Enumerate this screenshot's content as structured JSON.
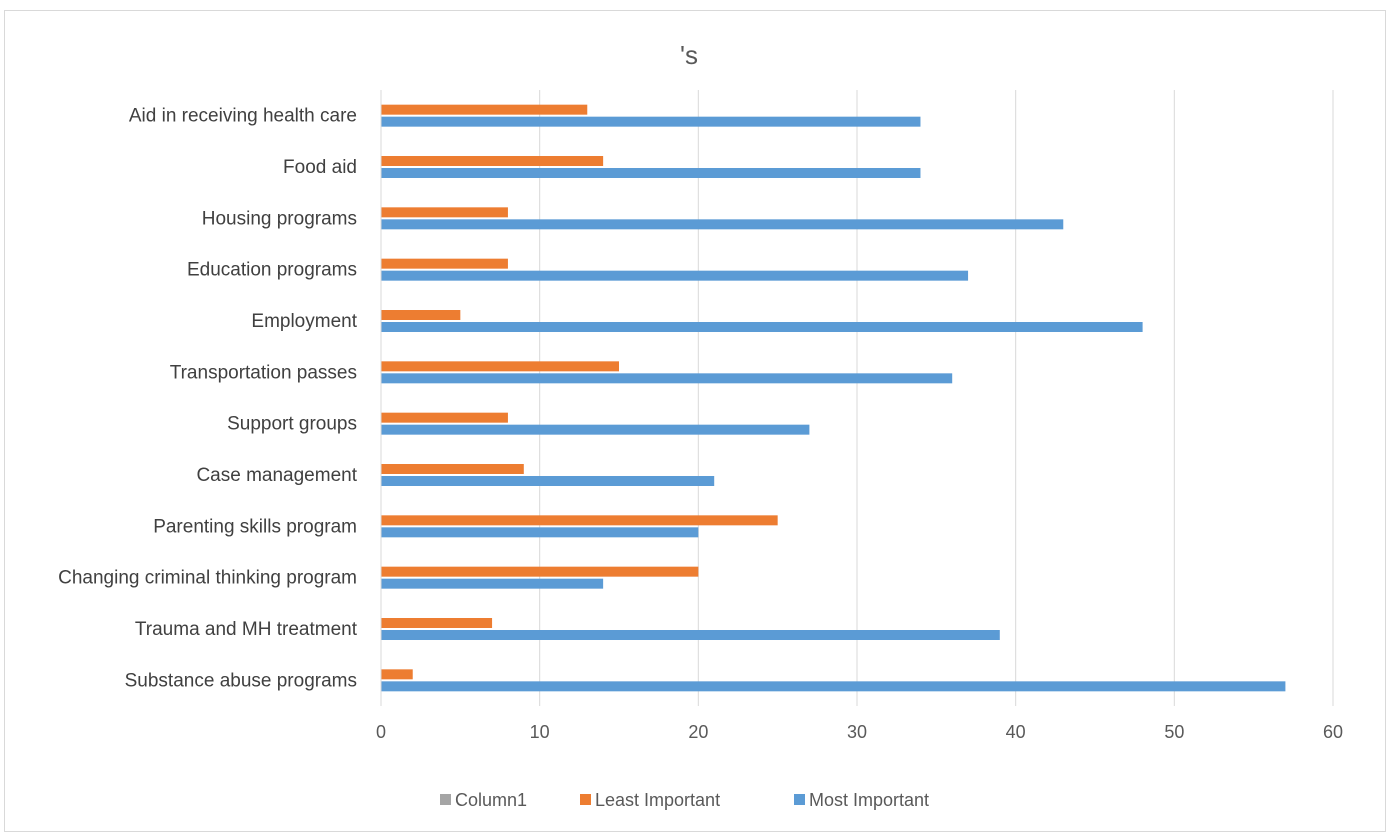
{
  "chart_data": {
    "type": "bar",
    "orientation": "horizontal",
    "title": "'s",
    "categories": [
      "Aid in receiving health care",
      "Food aid ",
      "Housing programs",
      "Education programs",
      "Employment",
      "Transportation passes",
      "Support groups",
      "Case management ",
      "Parenting skills program",
      "Changing criminal thinking program",
      "Trauma and MH treatment ",
      "Substance abuse programs"
    ],
    "series": [
      {
        "name": "Column1",
        "color": "#a5a5a5",
        "values": [
          0,
          0,
          0,
          0,
          0,
          0,
          0,
          0,
          0,
          0,
          0,
          0
        ]
      },
      {
        "name": "Least Important",
        "color": "#ed7d31",
        "values": [
          13,
          14,
          8,
          8,
          5,
          15,
          8,
          9,
          25,
          20,
          7,
          2
        ]
      },
      {
        "name": "Most Important",
        "color": "#5b9bd5",
        "values": [
          34,
          34,
          43,
          37,
          48,
          36,
          27,
          21,
          20,
          14,
          39,
          57
        ]
      }
    ],
    "xlim": [
      0,
      60
    ],
    "xticks": [
      "0",
      "10",
      "20",
      "30",
      "40",
      "50",
      "60"
    ],
    "xlabel": "",
    "ylabel": "",
    "grid": true,
    "legend_position": "bottom"
  }
}
